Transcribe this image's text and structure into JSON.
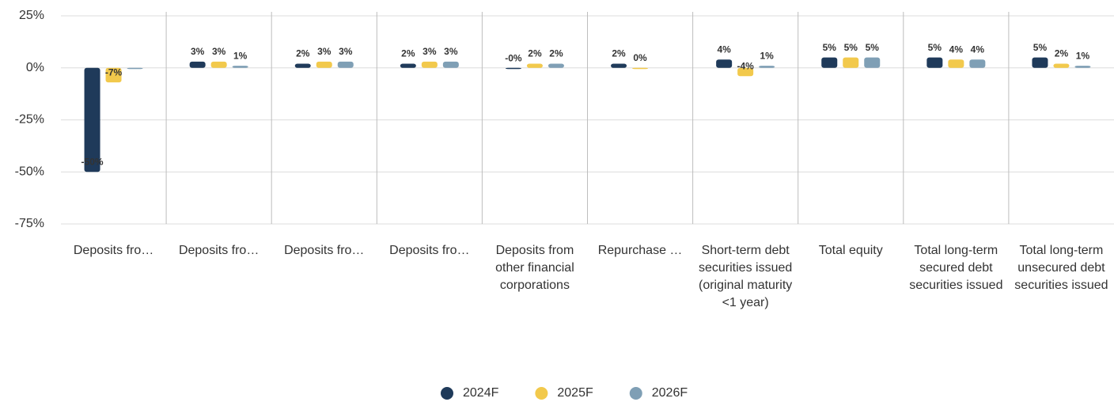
{
  "chart_data": {
    "type": "bar",
    "categories": [
      "Deposits fro…",
      "Deposits fro…",
      "Deposits fro…",
      "Deposits fro…",
      "Deposits from other financial corporations",
      "Repurchase …",
      "Short-term debt securities issued (original maturity <1 year)",
      "Total equity",
      "Total long-term secured debt securities issued",
      "Total long-term unsecured debt securities issued"
    ],
    "series": [
      {
        "name": "2024F",
        "color": "#1f3a5a",
        "values": [
          -50,
          3,
          2,
          2,
          -0.3,
          2,
          4,
          5,
          5,
          5
        ],
        "value_labels": [
          "-50%",
          "3%",
          "2%",
          "2%",
          "-0%",
          "2%",
          "4%",
          "5%",
          "5%",
          "5%"
        ]
      },
      {
        "name": "2025F",
        "color": "#f2c94c",
        "values": [
          -7,
          3,
          3,
          3,
          2,
          0,
          -4,
          5,
          4,
          2
        ],
        "value_labels": [
          "-7%",
          "3%",
          "3%",
          "3%",
          "2%",
          "0%",
          "-4%",
          "5%",
          "4%",
          "2%"
        ]
      },
      {
        "name": "2026F",
        "color": "#7f9fb5",
        "values": [
          -0.5,
          1,
          3,
          3,
          2,
          null,
          1,
          5,
          4,
          1
        ],
        "value_labels": [
          null,
          "1%",
          "3%",
          "3%",
          "2%",
          null,
          "1%",
          "5%",
          "4%",
          "1%"
        ]
      }
    ],
    "ylim": [
      -75,
      25
    ],
    "yticks": [
      {
        "value": 25,
        "label": "25%"
      },
      {
        "value": 0,
        "label": "0%"
      },
      {
        "value": -25,
        "label": "-25%"
      },
      {
        "value": -50,
        "label": "-50%"
      },
      {
        "value": -75,
        "label": "-75%"
      }
    ],
    "grid": true,
    "legend": "bottom"
  }
}
